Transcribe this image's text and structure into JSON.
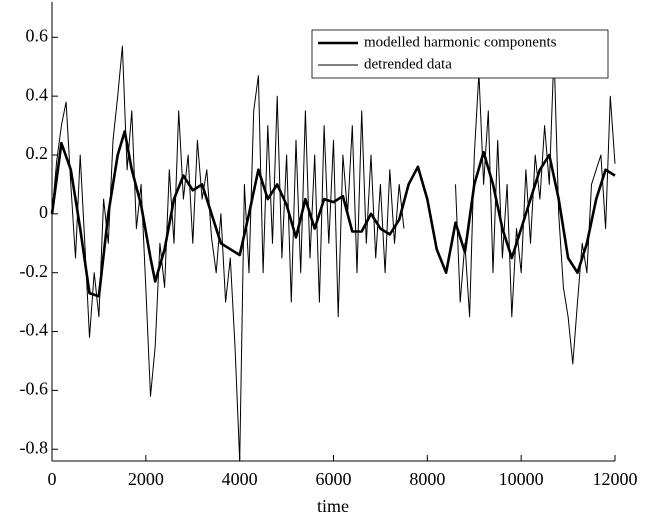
{
  "chart_data": {
    "type": "line",
    "xlabel": "time",
    "xlim": [
      0,
      12000
    ],
    "xticks": [
      0,
      2000,
      4000,
      6000,
      8000,
      10000,
      12000
    ],
    "ylim": [
      -0.84,
      0.72
    ],
    "yticks": [
      -0.8,
      -0.6,
      -0.4,
      -0.2,
      0,
      0.2,
      0.4,
      0.6
    ],
    "legend": "upper right",
    "series": [
      {
        "name": "modelled harmonic components",
        "color": "#000000",
        "x": [
          0,
          200,
          400,
          600,
          800,
          1000,
          1200,
          1400,
          1550,
          1700,
          1900,
          2100,
          2200,
          2400,
          2600,
          2800,
          3000,
          3200,
          3400,
          3600,
          3800,
          4000,
          4200,
          4400,
          4600,
          4800,
          5000,
          5200,
          5400,
          5600,
          5800,
          6000,
          6200,
          6400,
          6600,
          6800,
          7000,
          7200,
          7400,
          7600,
          7800,
          8000,
          8200,
          8400,
          8600,
          8800,
          9000,
          9200,
          9400,
          9600,
          9800,
          10000,
          10200,
          10400,
          10600,
          10800,
          11000,
          11200,
          11400,
          11600,
          11800,
          12000
        ],
        "values": [
          0,
          0.24,
          0.15,
          -0.05,
          -0.27,
          -0.28,
          0,
          0.2,
          0.28,
          0.15,
          0.03,
          -0.15,
          -0.23,
          -0.12,
          0.05,
          0.13,
          0.08,
          0.1,
          0,
          -0.1,
          -0.12,
          -0.14,
          0,
          0.15,
          0.05,
          0.1,
          0.03,
          -0.08,
          0.05,
          -0.05,
          0.05,
          0.04,
          0.06,
          -0.06,
          -0.06,
          0,
          -0.05,
          -0.07,
          -0.02,
          0.1,
          0.16,
          0.05,
          -0.12,
          -0.2,
          -0.03,
          -0.13,
          0.1,
          0.21,
          0.1,
          -0.05,
          -0.15,
          -0.05,
          0.05,
          0.15,
          0.2,
          0.05,
          -0.15,
          -0.2,
          -0.1,
          0.05,
          0.15,
          0.13
        ]
      },
      {
        "name": "detrended data",
        "color": "#000000",
        "x": [
          0,
          100,
          200,
          300,
          400,
          500,
          600,
          700,
          800,
          900,
          1000,
          1100,
          1200,
          1300,
          1400,
          1500,
          1600,
          1700,
          1800,
          1900,
          2000,
          2100,
          2200,
          2300,
          2400,
          2500,
          2600,
          2700,
          2800,
          2900,
          3000,
          3100,
          3200,
          3300,
          3400,
          3500,
          3600,
          3700,
          3800,
          3900,
          4000,
          4100,
          4200,
          4300,
          4400,
          4500,
          4600,
          4700,
          4800,
          4900,
          5000,
          5100,
          5200,
          5300,
          5400,
          5500,
          5600,
          5700,
          5800,
          5900,
          6000,
          6100,
          6200,
          6300,
          6400,
          6500,
          6600,
          6700,
          6800,
          6900,
          7000,
          7100,
          7200,
          7300,
          7400,
          7500,
          7600,
          7700,
          7800,
          7900,
          8000,
          8100,
          8200,
          8300,
          8400,
          8500,
          8600,
          8700,
          8800,
          8900,
          9000,
          9100,
          9200,
          9300,
          9400,
          9500,
          9600,
          9700,
          9800,
          9900,
          10000,
          10100,
          10200,
          10300,
          10400,
          10500,
          10600,
          10700,
          10800,
          10900,
          11000,
          11100,
          11200,
          11300,
          11400,
          11500,
          11600,
          11700,
          11800,
          11900,
          12000
        ],
        "values": [
          0,
          0.18,
          0.3,
          0.38,
          0.1,
          -0.15,
          0.2,
          -0.1,
          -0.42,
          -0.2,
          -0.35,
          0.05,
          -0.1,
          0.25,
          0.4,
          0.57,
          0.15,
          0.35,
          -0.05,
          0.1,
          -0.25,
          -0.62,
          -0.45,
          -0.1,
          -0.25,
          0.15,
          -0.1,
          0.35,
          0.05,
          0.2,
          -0.1,
          0.25,
          0.05,
          0.15,
          -0.08,
          -0.2,
          0,
          -0.3,
          -0.15,
          -0.45,
          -0.84,
          0.1,
          -0.2,
          0.35,
          0.47,
          -0.2,
          0.3,
          -0.1,
          0.4,
          -0.15,
          0.2,
          -0.3,
          0.25,
          -0.2,
          0.35,
          -0.15,
          0.2,
          -0.3,
          0.3,
          -0.1,
          0.25,
          -0.35,
          0.2,
          0,
          0.3,
          -0.2,
          0.35,
          -0.1,
          0.2,
          -0.15,
          0.1,
          -0.2,
          0.15,
          -0.1,
          0.1,
          -0.05,
          null,
          null,
          null,
          null,
          null,
          null,
          null,
          null,
          null,
          null,
          0.1,
          -0.3,
          -0.1,
          -0.35,
          0.2,
          0.48,
          0.1,
          0.35,
          -0.2,
          0.25,
          -0.15,
          0.1,
          -0.35,
          -0.05,
          -0.2,
          0.15,
          -0.1,
          0.2,
          0.05,
          0.3,
          0.1,
          0.55,
          0,
          -0.25,
          -0.35,
          -0.51,
          -0.3,
          -0.1,
          -0.2,
          0.1,
          0.15,
          0.2,
          -0.05,
          0.4,
          0.17
        ]
      }
    ]
  }
}
